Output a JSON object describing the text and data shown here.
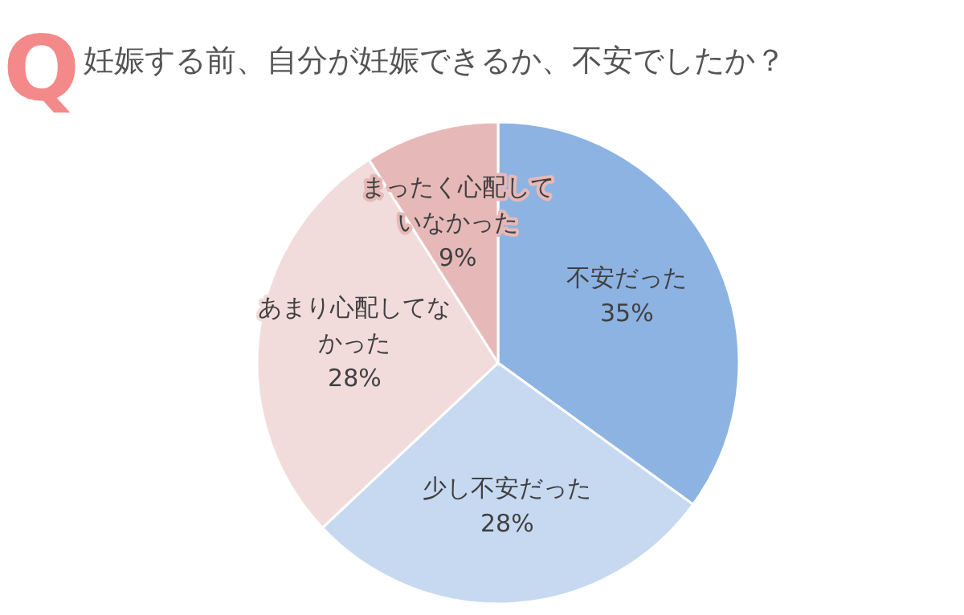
{
  "chart_data": {
    "type": "pie",
    "title": "妊娠する前、自分が妊娠できるか、不安でしたか？",
    "annotations": [
      "Q"
    ],
    "categories": [
      "不安だった",
      "少し不安だった",
      "あまり心配してなかった",
      "まったく心配していなかった"
    ],
    "values": [
      35,
      28,
      28,
      9
    ],
    "value_labels": [
      "35%",
      "28%",
      "28%",
      "9%"
    ],
    "colors": [
      "#8db3e2",
      "#c6d9f1",
      "#f2dcdb",
      "#e6b9b8"
    ]
  }
}
